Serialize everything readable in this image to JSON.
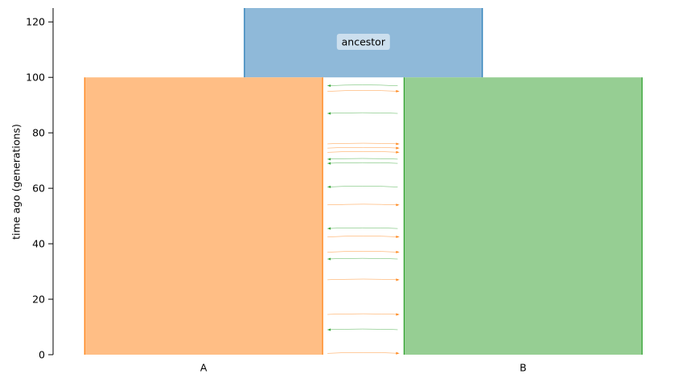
{
  "chart_data": {
    "type": "demography",
    "ylabel": "time ago (generations)",
    "ylim": [
      0,
      125
    ],
    "yticks": [
      0,
      20,
      40,
      60,
      80,
      100,
      120
    ],
    "demes": [
      {
        "name": "ancestor",
        "start_time": 125,
        "end_time": 100,
        "color": "#8fb9d9",
        "edge": "#1f77b4",
        "label": "ancestor",
        "x_center": 450,
        "width": 298
      },
      {
        "name": "A",
        "start_time": 100,
        "end_time": 0,
        "color": "#ffbe85",
        "edge": "#ff7f0e",
        "label": "A",
        "x_center": 250,
        "width": 298
      },
      {
        "name": "B",
        "start_time": 100,
        "end_time": 0,
        "color": "#96ce93",
        "edge": "#2ca02c",
        "label": "B",
        "x_center": 650,
        "width": 298
      }
    ],
    "migrations": [
      {
        "time": 97,
        "source": "B",
        "dest": "A"
      },
      {
        "time": 95,
        "source": "A",
        "dest": "B"
      },
      {
        "time": 87,
        "source": "B",
        "dest": "A"
      },
      {
        "time": 76,
        "source": "A",
        "dest": "B"
      },
      {
        "time": 74.5,
        "source": "A",
        "dest": "B"
      },
      {
        "time": 73,
        "source": "A",
        "dest": "B"
      },
      {
        "time": 70.5,
        "source": "B",
        "dest": "A"
      },
      {
        "time": 69,
        "source": "B",
        "dest": "A"
      },
      {
        "time": 60.5,
        "source": "B",
        "dest": "A"
      },
      {
        "time": 54,
        "source": "A",
        "dest": "B"
      },
      {
        "time": 45.5,
        "source": "B",
        "dest": "A"
      },
      {
        "time": 42.5,
        "source": "A",
        "dest": "B"
      },
      {
        "time": 37,
        "source": "A",
        "dest": "B"
      },
      {
        "time": 34.5,
        "source": "B",
        "dest": "A"
      },
      {
        "time": 27,
        "source": "A",
        "dest": "B"
      },
      {
        "time": 14.5,
        "source": "A",
        "dest": "B"
      },
      {
        "time": 9,
        "source": "B",
        "dest": "A"
      },
      {
        "time": 0.5,
        "source": "A",
        "dest": "B"
      }
    ]
  }
}
